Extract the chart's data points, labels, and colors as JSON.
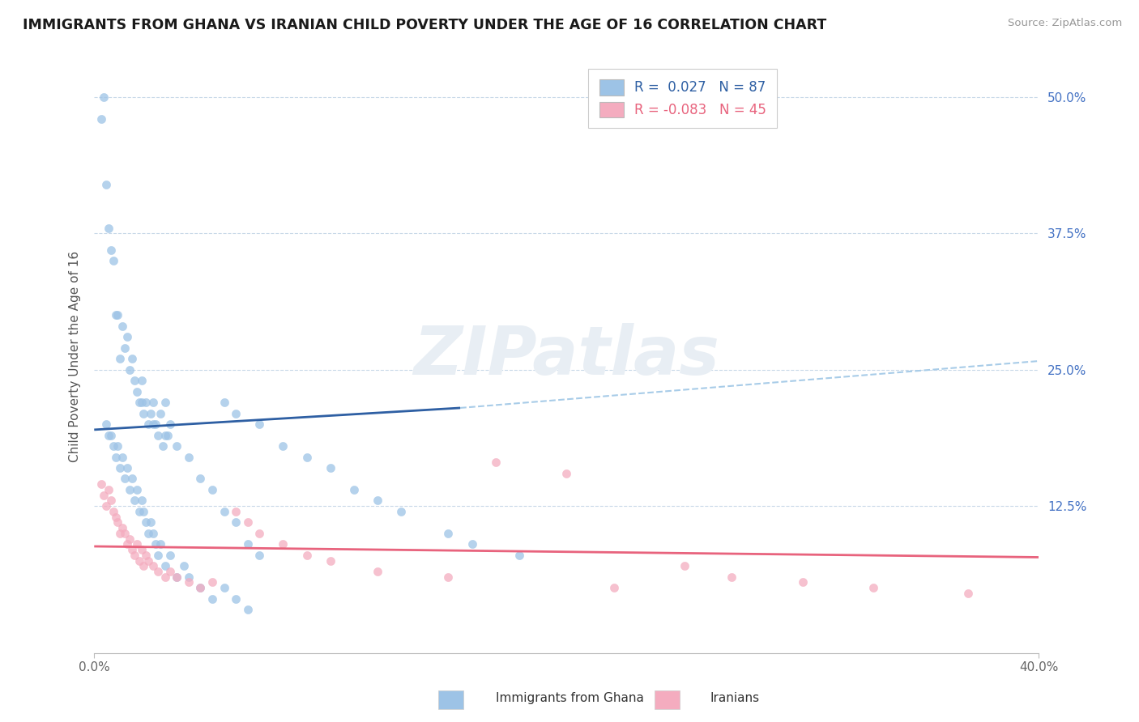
{
  "title": "IMMIGRANTS FROM GHANA VS IRANIAN CHILD POVERTY UNDER THE AGE OF 16 CORRELATION CHART",
  "source": "Source: ZipAtlas.com",
  "ylabel": "Child Poverty Under the Age of 16",
  "ytick_labels": [
    "50.0%",
    "37.5%",
    "25.0%",
    "12.5%"
  ],
  "ytick_vals": [
    0.5,
    0.375,
    0.25,
    0.125
  ],
  "xlim": [
    0.0,
    0.4
  ],
  "ylim": [
    -0.01,
    0.535
  ],
  "ghana_R": "0.027",
  "ghana_N": "87",
  "iran_R": "-0.083",
  "iran_N": "45",
  "ghana_color": "#9dc3e6",
  "iran_color": "#f4acbf",
  "ghana_line_color": "#2e5fa3",
  "iran_line_color": "#e8637d",
  "dash_line_color": "#a8cce8",
  "background_color": "#ffffff",
  "watermark_color": "#e8eef4",
  "legend_label_ghana": "Immigrants from Ghana",
  "legend_label_iran": "Iranians",
  "ghana_line_x0": 0.0,
  "ghana_line_y0": 0.195,
  "ghana_line_x1": 0.155,
  "ghana_line_y1": 0.215,
  "dash_line_x0": 0.155,
  "dash_line_y0": 0.215,
  "dash_line_x1": 0.4,
  "dash_line_y1": 0.258,
  "iran_line_x0": 0.0,
  "iran_line_y0": 0.088,
  "iran_line_x1": 0.4,
  "iran_line_y1": 0.078,
  "ghana_x": [
    0.003,
    0.004,
    0.005,
    0.006,
    0.007,
    0.008,
    0.009,
    0.01,
    0.011,
    0.012,
    0.013,
    0.014,
    0.015,
    0.016,
    0.017,
    0.018,
    0.019,
    0.02,
    0.021,
    0.022,
    0.023,
    0.024,
    0.025,
    0.026,
    0.027,
    0.028,
    0.029,
    0.03,
    0.031,
    0.032,
    0.005,
    0.006,
    0.007,
    0.008,
    0.009,
    0.01,
    0.011,
    0.012,
    0.013,
    0.014,
    0.015,
    0.016,
    0.017,
    0.018,
    0.019,
    0.02,
    0.021,
    0.022,
    0.023,
    0.024,
    0.025,
    0.026,
    0.027,
    0.028,
    0.03,
    0.032,
    0.035,
    0.038,
    0.04,
    0.045,
    0.05,
    0.055,
    0.06,
    0.065,
    0.055,
    0.06,
    0.07,
    0.08,
    0.09,
    0.1,
    0.11,
    0.12,
    0.13,
    0.15,
    0.16,
    0.18,
    0.02,
    0.025,
    0.03,
    0.035,
    0.04,
    0.045,
    0.05,
    0.055,
    0.06,
    0.065,
    0.07
  ],
  "ghana_y": [
    0.48,
    0.5,
    0.42,
    0.38,
    0.36,
    0.35,
    0.3,
    0.3,
    0.26,
    0.29,
    0.27,
    0.28,
    0.25,
    0.26,
    0.24,
    0.23,
    0.22,
    0.24,
    0.21,
    0.22,
    0.2,
    0.21,
    0.22,
    0.2,
    0.19,
    0.21,
    0.18,
    0.22,
    0.19,
    0.2,
    0.2,
    0.19,
    0.19,
    0.18,
    0.17,
    0.18,
    0.16,
    0.17,
    0.15,
    0.16,
    0.14,
    0.15,
    0.13,
    0.14,
    0.12,
    0.13,
    0.12,
    0.11,
    0.1,
    0.11,
    0.1,
    0.09,
    0.08,
    0.09,
    0.07,
    0.08,
    0.06,
    0.07,
    0.06,
    0.05,
    0.04,
    0.05,
    0.04,
    0.03,
    0.22,
    0.21,
    0.2,
    0.18,
    0.17,
    0.16,
    0.14,
    0.13,
    0.12,
    0.1,
    0.09,
    0.08,
    0.22,
    0.2,
    0.19,
    0.18,
    0.17,
    0.15,
    0.14,
    0.12,
    0.11,
    0.09,
    0.08
  ],
  "iran_x": [
    0.003,
    0.004,
    0.005,
    0.006,
    0.007,
    0.008,
    0.009,
    0.01,
    0.011,
    0.012,
    0.013,
    0.014,
    0.015,
    0.016,
    0.017,
    0.018,
    0.019,
    0.02,
    0.021,
    0.022,
    0.023,
    0.025,
    0.027,
    0.03,
    0.032,
    0.035,
    0.04,
    0.045,
    0.05,
    0.06,
    0.065,
    0.07,
    0.08,
    0.09,
    0.1,
    0.12,
    0.15,
    0.17,
    0.2,
    0.22,
    0.25,
    0.27,
    0.3,
    0.33,
    0.37
  ],
  "iran_y": [
    0.145,
    0.135,
    0.125,
    0.14,
    0.13,
    0.12,
    0.115,
    0.11,
    0.1,
    0.105,
    0.1,
    0.09,
    0.095,
    0.085,
    0.08,
    0.09,
    0.075,
    0.085,
    0.07,
    0.08,
    0.075,
    0.07,
    0.065,
    0.06,
    0.065,
    0.06,
    0.055,
    0.05,
    0.055,
    0.12,
    0.11,
    0.1,
    0.09,
    0.08,
    0.075,
    0.065,
    0.06,
    0.165,
    0.155,
    0.05,
    0.07,
    0.06,
    0.055,
    0.05,
    0.045
  ]
}
